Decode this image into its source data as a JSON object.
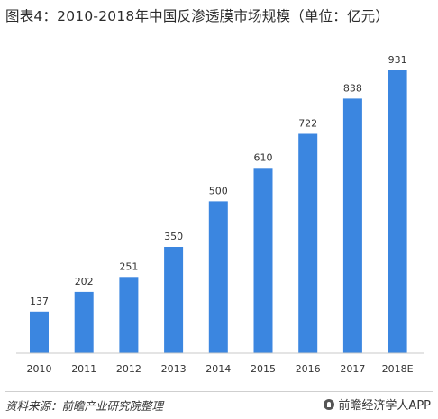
{
  "title": "图表4：2010-2018年中国反渗透膜市场规模（单位：亿元）",
  "chart_data": {
    "type": "bar",
    "title": "图表4：2010-2018年中国反渗透膜市场规模（单位：亿元）",
    "categories": [
      "2010",
      "2011",
      "2012",
      "2013",
      "2014",
      "2015",
      "2016",
      "2017",
      "2018E"
    ],
    "values": [
      137,
      202,
      251,
      350,
      500,
      610,
      722,
      838,
      931
    ],
    "xlabel": "",
    "ylabel": "",
    "ylim": [
      0,
      1000
    ],
    "grid": false,
    "legend": "none",
    "bar_color": "#3b86e0"
  },
  "footer": {
    "source": "资料来源：前瞻产业研究院整理",
    "brand": "前瞻经济学人APP"
  }
}
